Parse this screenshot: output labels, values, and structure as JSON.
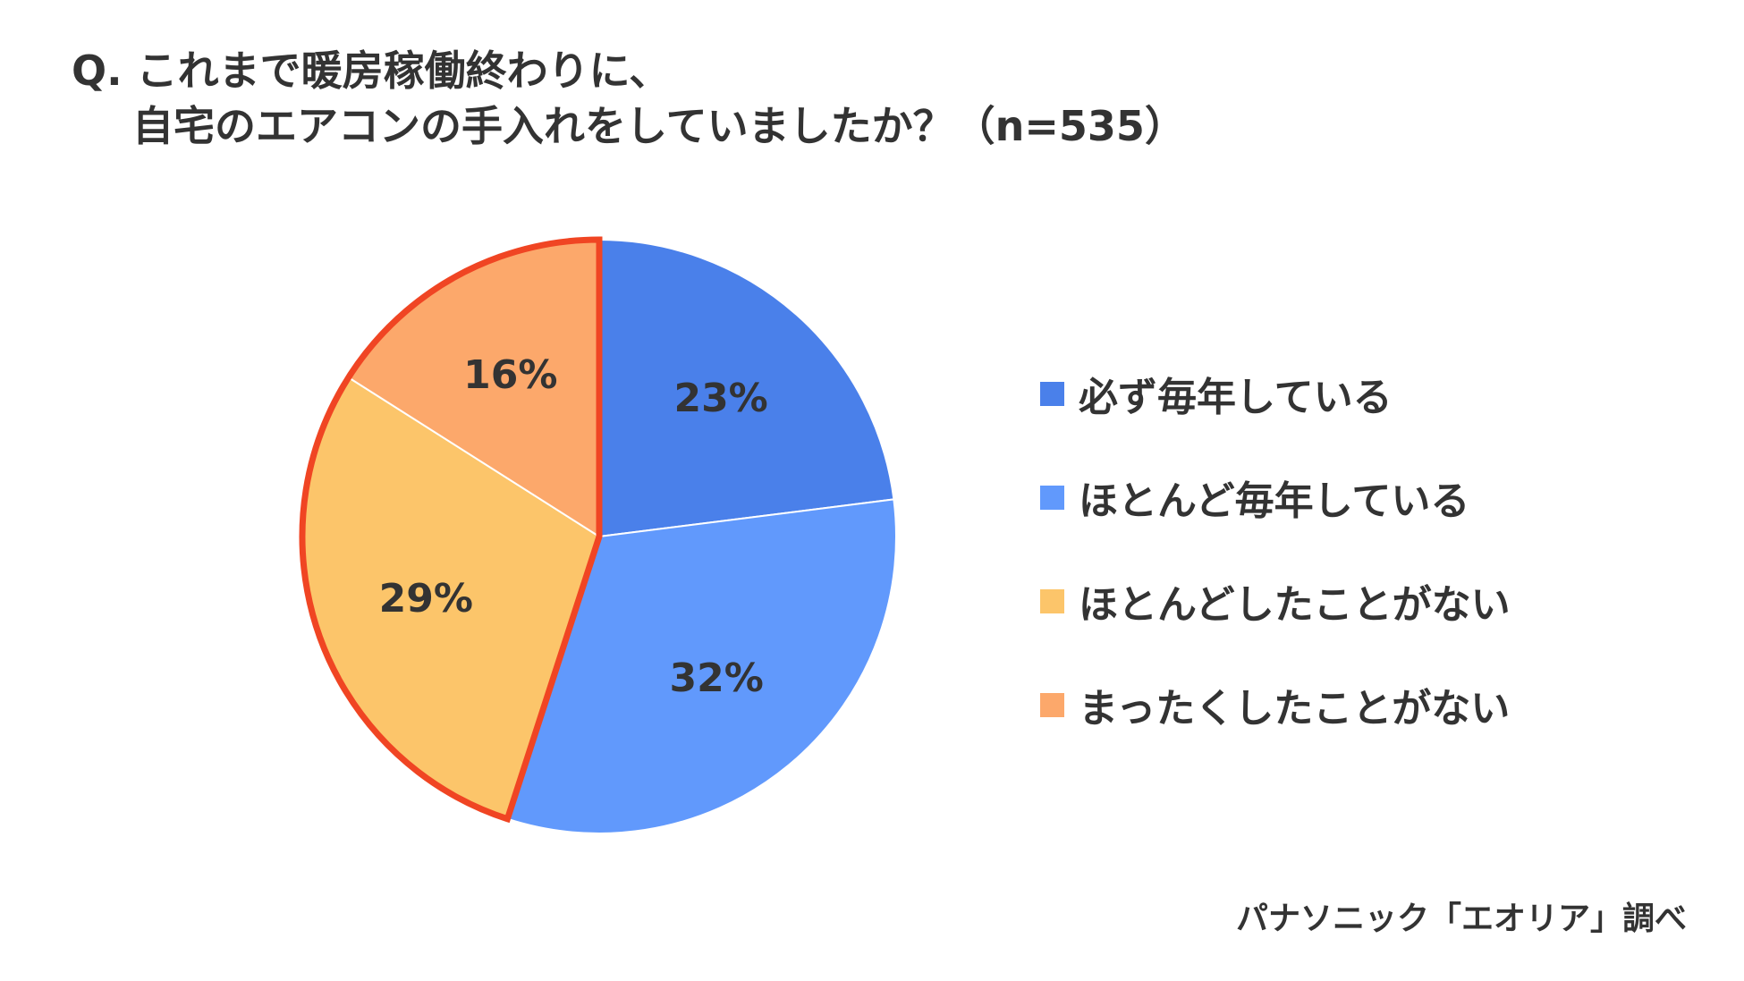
{
  "title": {
    "line1": "Q. これまで暖房稼働終わりに、",
    "line2": "自宅のエアコンの手入れをしていましたか？（n=535）"
  },
  "source": "パナソニック「エオリア」調べ",
  "chart_data": {
    "type": "pie",
    "n": 535,
    "unit": "%",
    "slices": [
      {
        "label": "必ず毎年している",
        "value": 23,
        "display": "23%",
        "color": "#4A80EA"
      },
      {
        "label": "ほとんど毎年している",
        "value": 32,
        "display": "32%",
        "color": "#6199FC"
      },
      {
        "label": "ほとんどしたことがない",
        "value": 29,
        "display": "29%",
        "color": "#FCC56A"
      },
      {
        "label": "まったくしたことがない",
        "value": 16,
        "display": "16%",
        "color": "#FCA86B"
      }
    ],
    "highlight": {
      "slices": [
        "ほとんどしたことがない",
        "まったくしたことがない"
      ],
      "outline_color": "#F04523"
    },
    "legend_position": "right"
  }
}
